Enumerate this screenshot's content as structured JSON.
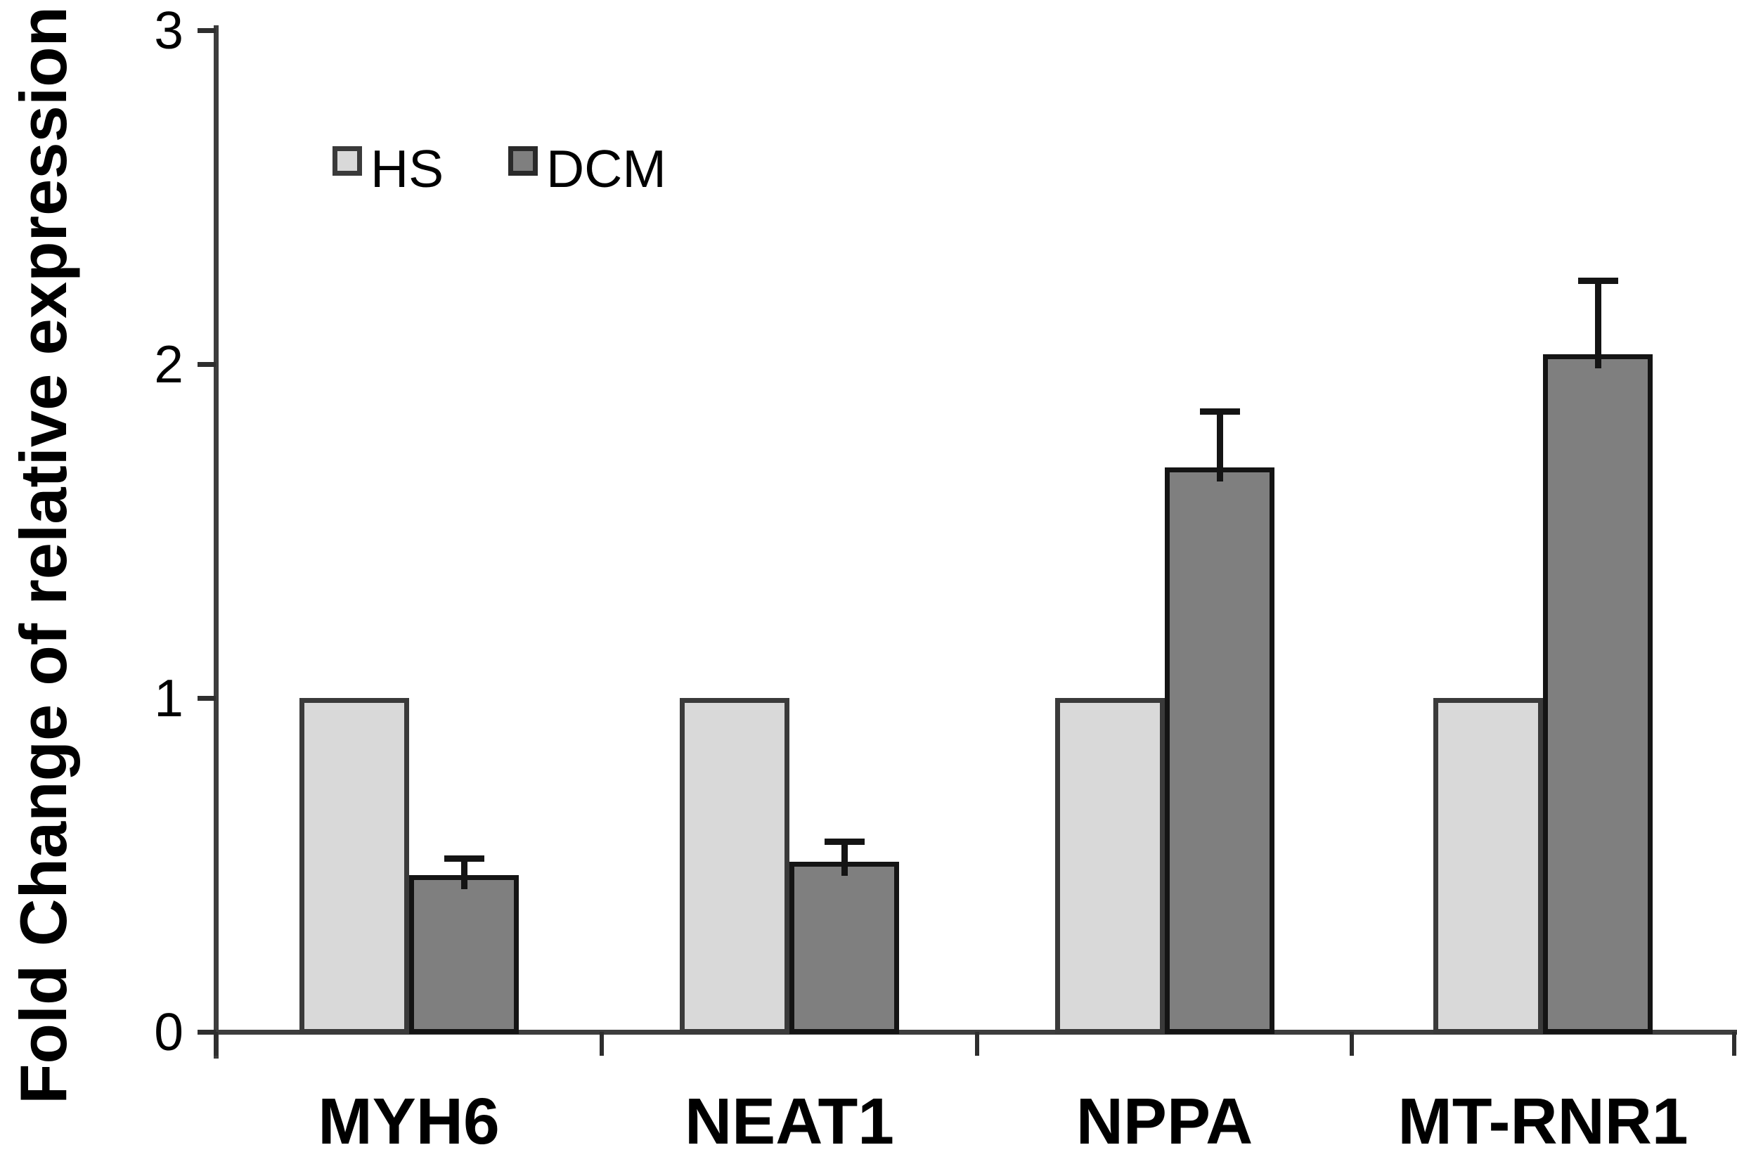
{
  "figure": {
    "background": "#ffffff",
    "y_axis_title": "Fold Change of relative expression",
    "y_tick_labels": [
      "0",
      "1",
      "2",
      "3"
    ],
    "x_category_labels": [
      "MYH6",
      "NEAT1",
      "NPPA",
      "MT-RNR1"
    ],
    "legend": {
      "items": [
        {
          "label": "HS",
          "swatch_color": "#d9d9d9",
          "swatch_border": "#3a3a3a"
        },
        {
          "label": "DCM",
          "swatch_color": "#7f7f7f",
          "swatch_border": "#2a2a2a"
        }
      ]
    },
    "colors": {
      "axis": "#3d3d3d",
      "text": "#000000",
      "error_bar": "#141414"
    }
  },
  "chart_data": {
    "type": "bar",
    "title": "",
    "xlabel": "",
    "ylabel": "Fold Change of relative expression",
    "categories": [
      "MYH6",
      "NEAT1",
      "NPPA",
      "MT-RNR1"
    ],
    "series": [
      {
        "name": "HS",
        "fill": "#d9d9d9",
        "border": "#3a3a3a",
        "values": [
          1.0,
          1.0,
          1.0,
          1.0
        ],
        "errors": [
          0,
          0,
          0,
          0
        ]
      },
      {
        "name": "DCM",
        "fill": "#7f7f7f",
        "border": "#141414",
        "values": [
          0.47,
          0.51,
          1.69,
          2.03
        ],
        "errors": [
          0.05,
          0.06,
          0.17,
          0.22
        ]
      }
    ],
    "ylim": [
      0,
      3
    ],
    "y_ticks": [
      0,
      1,
      2,
      3
    ],
    "grid": false,
    "legend_position": "upper-left-inside",
    "error_bars": "upper-only on DCM series"
  }
}
